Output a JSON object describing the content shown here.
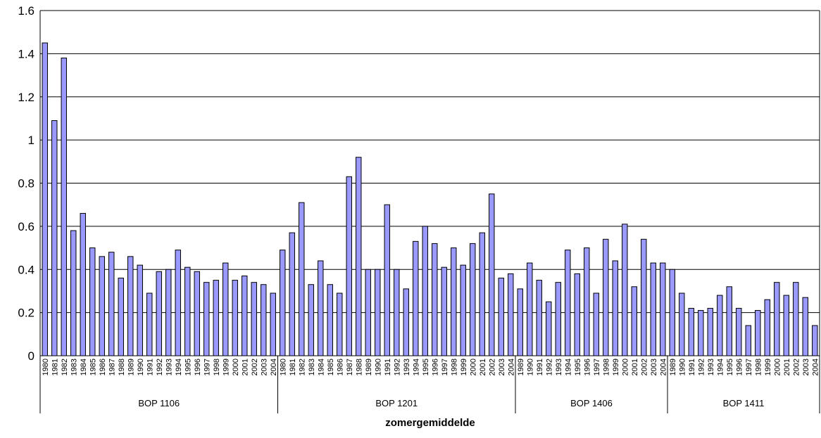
{
  "chart_data": {
    "type": "bar",
    "title": "",
    "xlabel": "zomergemiddelde",
    "ylabel": "",
    "ylim": [
      0,
      1.6
    ],
    "yticks": [
      "0",
      "0.2",
      "0.4",
      "0.6",
      "0.8",
      "1",
      "1.2",
      "1.4",
      "1.6"
    ],
    "grid": true,
    "bar_color": "#9999ff",
    "groups": [
      {
        "label": "BOP 1106",
        "categories": [
          "1980",
          "1981",
          "1982",
          "1983",
          "1984",
          "1985",
          "1986",
          "1987",
          "1988",
          "1989",
          "1990",
          "1991",
          "1992",
          "1993",
          "1994",
          "1995",
          "1996",
          "1997",
          "1998",
          "1999",
          "2000",
          "2001",
          "2002",
          "2003",
          "2004"
        ],
        "values": [
          1.45,
          1.09,
          1.38,
          0.58,
          0.66,
          0.5,
          0.46,
          0.48,
          0.36,
          0.46,
          0.42,
          0.29,
          0.39,
          0.4,
          0.49,
          0.41,
          0.39,
          0.34,
          0.35,
          0.43,
          0.35,
          0.37,
          0.34,
          0.33,
          0.29
        ]
      },
      {
        "label": "BOP 1201",
        "categories": [
          "1980",
          "1981",
          "1982",
          "1983",
          "1984",
          "1985",
          "1986",
          "1987",
          "1988",
          "1989",
          "1990",
          "1991",
          "1992",
          "1993",
          "1994",
          "1995",
          "1996",
          "1997",
          "1998",
          "1999",
          "2000",
          "2001",
          "2002",
          "2003",
          "2004"
        ],
        "values": [
          0.49,
          0.57,
          0.71,
          0.33,
          0.44,
          0.33,
          0.29,
          0.83,
          0.92,
          0.4,
          0.4,
          0.7,
          0.4,
          0.31,
          0.53,
          0.6,
          0.52,
          0.41,
          0.5,
          0.42,
          0.52,
          0.57,
          0.75,
          0.36,
          0.38
        ]
      },
      {
        "label": "BOP 1406",
        "categories": [
          "1989",
          "1990",
          "1991",
          "1992",
          "1993",
          "1994",
          "1995",
          "1996",
          "1997",
          "1998",
          "1999",
          "2000",
          "2001",
          "2002",
          "2003",
          "2004"
        ],
        "values": [
          0.31,
          0.43,
          0.35,
          0.25,
          0.34,
          0.49,
          0.38,
          0.5,
          0.29,
          0.54,
          0.44,
          0.61,
          0.32,
          0.54,
          0.43,
          0.43
        ]
      },
      {
        "label": "BOP 1411",
        "categories": [
          "1989",
          "1990",
          "1991",
          "1992",
          "1993",
          "1994",
          "1995",
          "1996",
          "1997",
          "1998",
          "1999",
          "2000",
          "2001",
          "2002",
          "2003",
          "2004"
        ],
        "values": [
          0.4,
          0.29,
          0.22,
          0.21,
          0.22,
          0.28,
          0.32,
          0.22,
          0.14,
          0.21,
          0.26,
          0.34,
          0.28,
          0.34,
          0.27,
          0.14
        ]
      }
    ]
  }
}
